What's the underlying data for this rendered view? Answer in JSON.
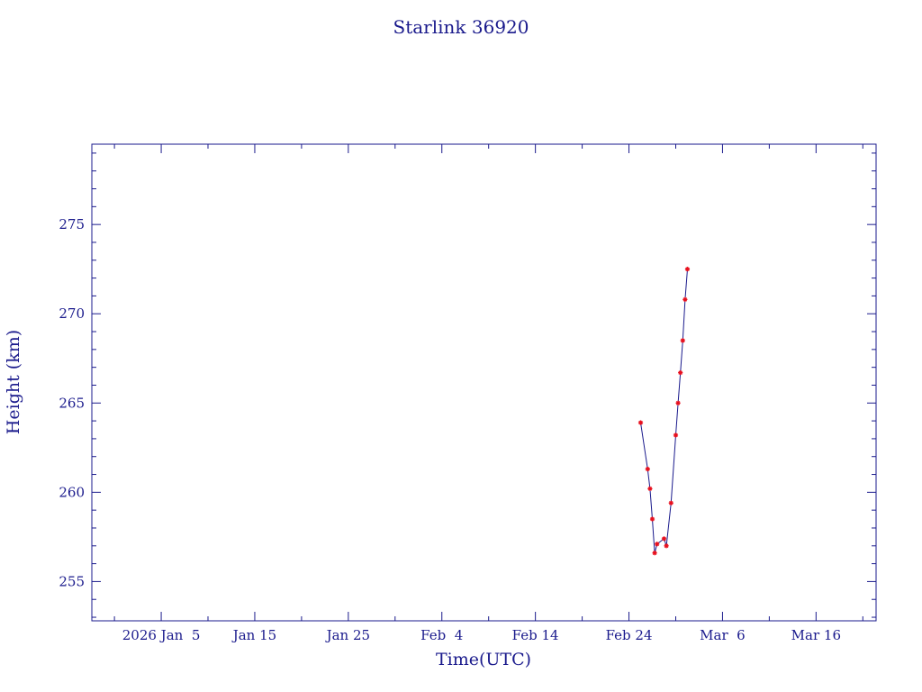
{
  "chart_data": {
    "type": "line",
    "title": "Starlink 36920",
    "xlabel": "Time(UTC)",
    "ylabel": "Height (km)",
    "xlim": [
      "2025-12-28T14:00",
      "2026-03-22T10:00"
    ],
    "ylim": [
      252.8,
      279.5
    ],
    "x_tick_labels": [
      "2026 Jan  5",
      "Jan 15",
      "Jan 25",
      "Feb  4",
      "Feb 14",
      "Feb 24",
      "Mar  6",
      "Mar 16"
    ],
    "x_tick_dates": [
      "2026-01-05",
      "2026-01-15",
      "2026-01-25",
      "2026-02-04",
      "2026-02-14",
      "2026-02-24",
      "2026-03-06",
      "2026-03-16"
    ],
    "y_ticks": [
      255,
      260,
      265,
      270,
      275
    ],
    "y_tick_labels": [
      "255",
      "260",
      "265",
      "270",
      "275"
    ],
    "grid": false,
    "series": [
      {
        "line_color": "#1a1a8c",
        "marker_color": "#e8101e",
        "points": [
          {
            "x": "2026-02-25T06:00",
            "y": 263.9
          },
          {
            "x": "2026-02-26T00:00",
            "y": 261.3
          },
          {
            "x": "2026-02-26T06:00",
            "y": 260.2
          },
          {
            "x": "2026-02-26T12:00",
            "y": 258.5
          },
          {
            "x": "2026-02-26T18:00",
            "y": 256.6
          },
          {
            "x": "2026-02-27T00:00",
            "y": 257.1
          },
          {
            "x": "2026-02-27T18:00",
            "y": 257.4
          },
          {
            "x": "2026-02-28T00:00",
            "y": 257.0
          },
          {
            "x": "2026-02-28T12:00",
            "y": 259.4
          },
          {
            "x": "2026-03-01T00:00",
            "y": 263.2
          },
          {
            "x": "2026-03-01T06:00",
            "y": 265.0
          },
          {
            "x": "2026-03-01T12:00",
            "y": 266.7
          },
          {
            "x": "2026-03-01T18:00",
            "y": 268.5
          },
          {
            "x": "2026-03-02T00:00",
            "y": 270.8
          },
          {
            "x": "2026-03-02T06:00",
            "y": 272.5
          }
        ]
      }
    ]
  },
  "colors": {
    "axis": "#1a1a8c",
    "text": "#1a1a8c",
    "marker": "#e8101e",
    "background": "#ffffff"
  }
}
